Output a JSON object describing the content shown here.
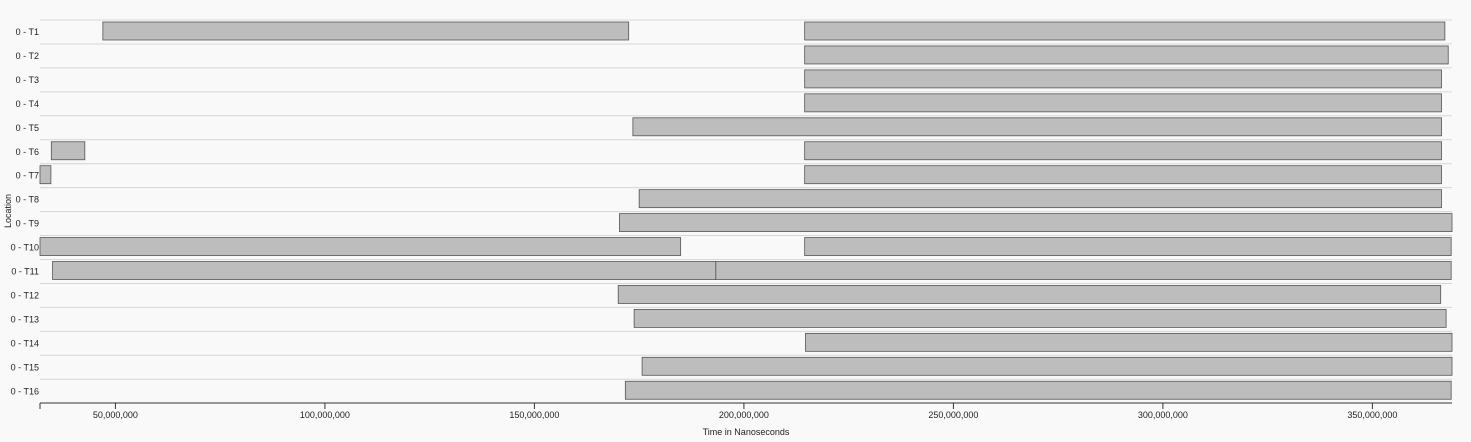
{
  "chart_data": {
    "type": "timeline",
    "xlabel": "Time in Nanoseconds",
    "ylabel": "Location",
    "xlim": [
      32000000,
      369000000
    ],
    "xticks": [
      {
        "value": 50000000,
        "label": "50,000,000"
      },
      {
        "value": 100000000,
        "label": "100,000,000"
      },
      {
        "value": 150000000,
        "label": "150,000,000"
      },
      {
        "value": 200000000,
        "label": "200,000,000"
      },
      {
        "value": 250000000,
        "label": "250,000,000"
      },
      {
        "value": 300000000,
        "label": "300,000,000"
      },
      {
        "value": 350000000,
        "label": "350,000,000"
      }
    ],
    "rows": [
      {
        "label": "0 - T1",
        "segments": [
          [
            47000000,
            172500000
          ],
          [
            214500000,
            367300000
          ]
        ]
      },
      {
        "label": "0 - T2",
        "segments": [
          [
            214500000,
            368100000
          ]
        ]
      },
      {
        "label": "0 - T3",
        "segments": [
          [
            214500000,
            366500000
          ]
        ]
      },
      {
        "label": "0 - T4",
        "segments": [
          [
            214500000,
            366500000
          ]
        ]
      },
      {
        "label": "0 - T5",
        "segments": [
          [
            173500000,
            366500000
          ]
        ]
      },
      {
        "label": "0 - T6",
        "segments": [
          [
            34700000,
            42700000
          ],
          [
            214500000,
            366500000
          ]
        ]
      },
      {
        "label": "0 - T7",
        "segments": [
          [
            32000000,
            34600000
          ],
          [
            214500000,
            366500000
          ]
        ]
      },
      {
        "label": "0 - T8",
        "segments": [
          [
            175000000,
            366500000
          ]
        ]
      },
      {
        "label": "0 - T9",
        "segments": [
          [
            170300000,
            369000000
          ]
        ]
      },
      {
        "label": "0 - T10",
        "segments": [
          [
            32000000,
            184900000
          ],
          [
            214500000,
            368800000
          ]
        ]
      },
      {
        "label": "0 - T11",
        "segments": [
          [
            35000000,
            193300000
          ],
          [
            193300000,
            368800000
          ]
        ]
      },
      {
        "label": "0 - T12",
        "segments": [
          [
            170000000,
            366300000
          ]
        ]
      },
      {
        "label": "0 - T13",
        "segments": [
          [
            173800000,
            367600000
          ]
        ]
      },
      {
        "label": "0 - T14",
        "segments": [
          [
            214700000,
            369000000
          ]
        ]
      },
      {
        "label": "0 - T15",
        "segments": [
          [
            175700000,
            369000000
          ]
        ]
      },
      {
        "label": "0 - T16",
        "segments": [
          [
            171700000,
            368800000
          ]
        ]
      }
    ]
  }
}
